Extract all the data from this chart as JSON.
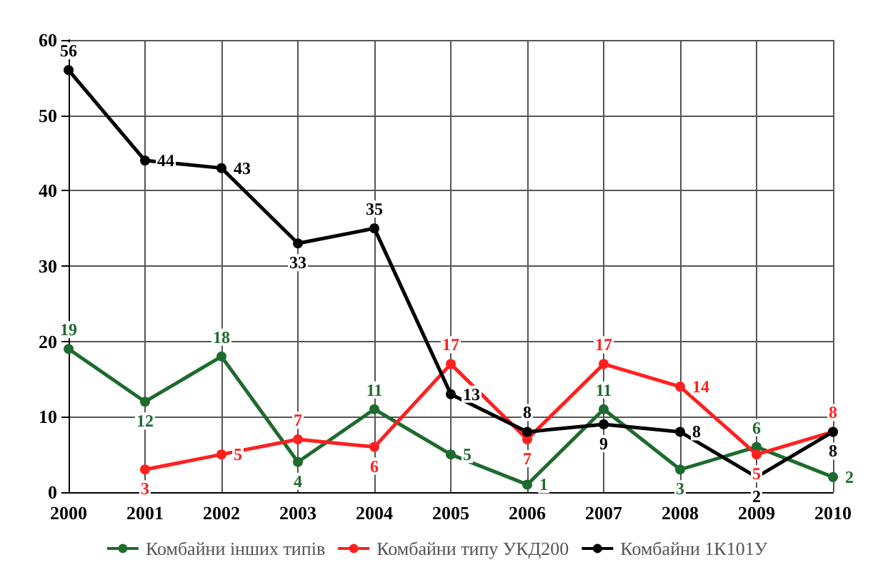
{
  "chart_data": {
    "type": "line",
    "categories": [
      "2000",
      "2001",
      "2002",
      "2003",
      "2004",
      "2005",
      "2006",
      "2007",
      "2008",
      "2009",
      "2010"
    ],
    "series": [
      {
        "name": "Комбайни інших типів",
        "color": "#1e6b2e",
        "values": [
          19,
          12,
          18,
          4,
          11,
          5,
          1,
          11,
          3,
          6,
          2
        ]
      },
      {
        "name": "Комбайни типу УКД200",
        "color": "#ff2020",
        "values": [
          null,
          3,
          5,
          7,
          6,
          17,
          7,
          17,
          14,
          5,
          8
        ]
      },
      {
        "name": "Комбайни 1К101У",
        "color": "#000000",
        "values": [
          56,
          44,
          43,
          33,
          35,
          13,
          8,
          9,
          8,
          2,
          8
        ]
      }
    ],
    "ylim": [
      0,
      60
    ],
    "yticks": [
      0,
      10,
      20,
      30,
      40,
      50,
      60
    ],
    "grid": true,
    "legend": "bottom",
    "marker": "circle",
    "line_style": "solid",
    "data_labels": true
  }
}
